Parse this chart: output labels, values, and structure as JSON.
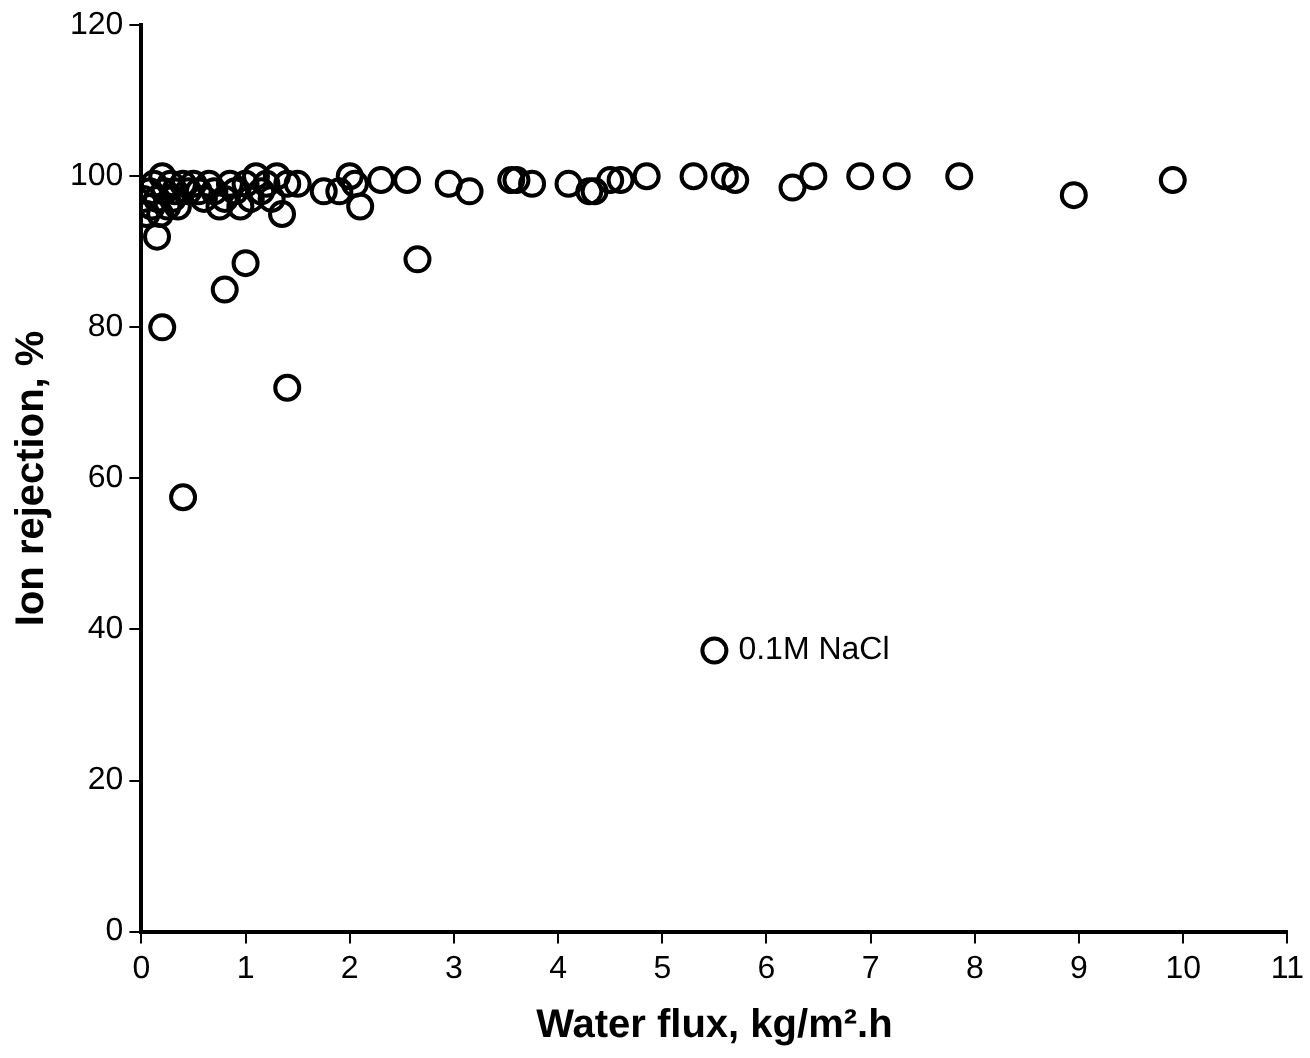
{
  "chart_data": {
    "type": "scatter",
    "xlabel": "Water flux, kg/m².h",
    "ylabel": "Ion rejection, %",
    "xlim": [
      0,
      11
    ],
    "ylim": [
      0,
      120
    ],
    "xticks": [
      0,
      1,
      2,
      3,
      4,
      5,
      6,
      7,
      8,
      9,
      10,
      11
    ],
    "yticks": [
      0,
      20,
      40,
      60,
      80,
      100,
      120
    ],
    "grid": false,
    "legend": "center right",
    "marker": "circle",
    "series": [
      {
        "name": "0.1M NaCl",
        "color": "#000000",
        "x": [
          0.02,
          0.05,
          0.08,
          0.1,
          0.12,
          0.15,
          0.18,
          0.2,
          0.22,
          0.25,
          0.28,
          0.3,
          0.32,
          0.35,
          0.4,
          0.45,
          0.5,
          0.55,
          0.6,
          0.65,
          0.7,
          0.75,
          0.8,
          0.85,
          0.9,
          0.95,
          1.0,
          1.05,
          1.1,
          1.15,
          1.2,
          1.25,
          1.3,
          1.35,
          1.4,
          1.5,
          1.75,
          1.9,
          2.0,
          2.05,
          2.1,
          2.3,
          2.55,
          2.95,
          3.15,
          3.55,
          3.6,
          3.75,
          4.1,
          4.3,
          4.35,
          4.5,
          4.6,
          4.85,
          5.3,
          5.6,
          5.7,
          6.25,
          6.45,
          6.9,
          7.25,
          7.85,
          8.95,
          9.9,
          0.2,
          0.4,
          0.8,
          1.0,
          1.4,
          2.65,
          0.15
        ],
        "values": [
          97,
          95,
          98,
          96,
          99,
          97,
          95,
          100,
          98,
          96,
          99,
          97,
          98,
          96,
          99,
          98,
          99,
          98,
          97,
          99,
          98,
          96,
          97,
          99,
          98,
          96,
          99,
          97,
          100,
          98,
          99,
          97,
          100,
          95,
          99,
          99,
          98,
          98,
          100,
          99,
          96,
          99.5,
          99.5,
          99,
          98,
          99.5,
          99.5,
          99,
          99,
          98,
          98,
          99.5,
          99.5,
          100,
          100,
          100,
          99.5,
          98.5,
          100,
          100,
          100,
          100,
          97.5,
          99.5,
          80,
          57.5,
          85,
          88.5,
          72,
          89,
          92
        ]
      }
    ]
  }
}
